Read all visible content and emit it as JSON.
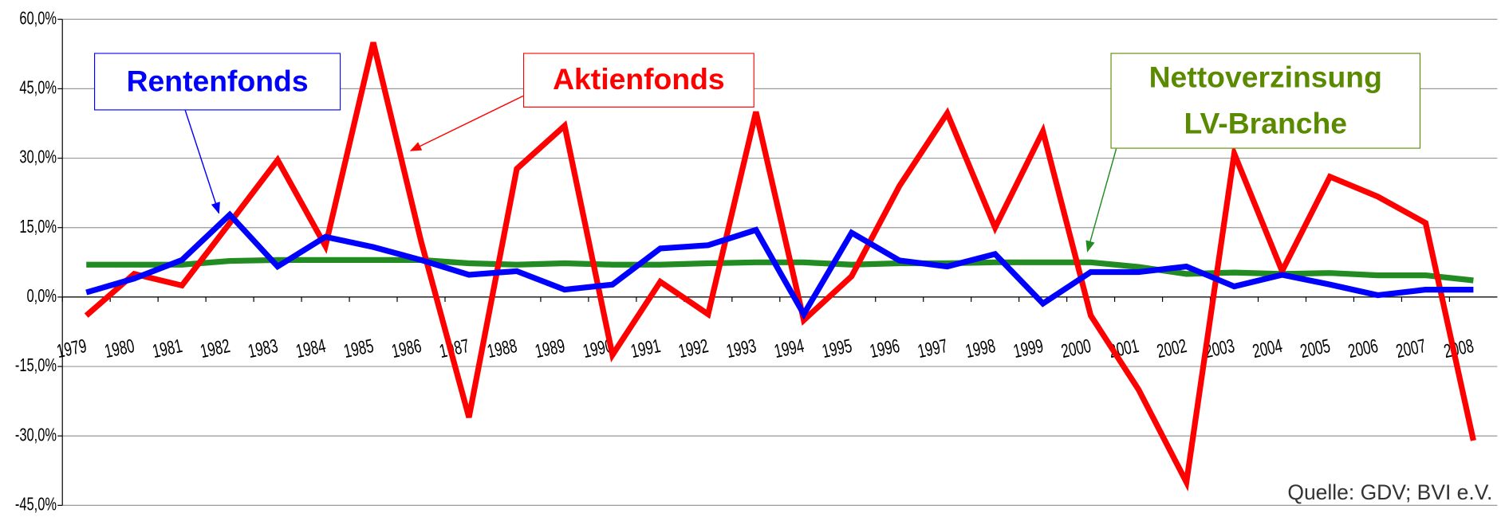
{
  "chart_data": {
    "type": "line",
    "categories": [
      "1979",
      "1980",
      "1981",
      "1982",
      "1983",
      "1984",
      "1985",
      "1986",
      "1987",
      "1988",
      "1989",
      "1990",
      "1991",
      "1992",
      "1993",
      "1994",
      "1995",
      "1996",
      "1997",
      "1998",
      "1999",
      "2000",
      "2001",
      "2002",
      "2003",
      "2004",
      "2005",
      "2006",
      "2007",
      "2008"
    ],
    "series": [
      {
        "name": "Nettoverzinsung LV-Branche",
        "color": "#228b22",
        "label_color": "#5a8a00",
        "values": [
          7,
          7,
          7,
          7.8,
          8,
          8,
          8,
          8,
          7.3,
          7,
          7.3,
          7,
          7,
          7.3,
          7.5,
          7.5,
          7,
          7.3,
          7.3,
          7.5,
          7.5,
          7.5,
          6.5,
          5,
          5.3,
          5,
          5.2,
          4.7,
          4.7,
          3.6
        ]
      },
      {
        "name": "Aktienfonds",
        "color": "#ff0000",
        "label_color": "#ff0000",
        "values": [
          -4,
          5,
          2.5,
          16,
          29.6,
          11,
          55,
          12,
          -26,
          27.7,
          37,
          -12.5,
          3.3,
          -3.7,
          40,
          -5,
          4.5,
          24,
          39.7,
          15,
          35.8,
          -4,
          -20,
          -40,
          31,
          5.6,
          26,
          21.7,
          16,
          -31
        ]
      },
      {
        "name": "Rentenfonds",
        "color": "#0000ff",
        "label_color": "#0000ff",
        "values": [
          1,
          4,
          8,
          17.8,
          6.6,
          13,
          10.8,
          8,
          4.8,
          5.6,
          1.6,
          2.7,
          10.5,
          11.2,
          14.5,
          -3.7,
          13.9,
          7.9,
          6.6,
          9.3,
          -1.4,
          5.4,
          5.4,
          6.6,
          2.3,
          4.8,
          2.7,
          0.4,
          1.6,
          1.6
        ]
      }
    ],
    "ylim": [
      -45,
      60
    ],
    "yticks": [
      {
        "value": -45,
        "label": "-45,0%"
      },
      {
        "value": -30,
        "label": "-30,0%"
      },
      {
        "value": -15,
        "label": "-15,0%"
      },
      {
        "value": 0,
        "label": "0,0%"
      },
      {
        "value": 15,
        "label": "15,0%"
      },
      {
        "value": 30,
        "label": "30,0%"
      },
      {
        "value": 45,
        "label": "45,0%"
      },
      {
        "value": 60,
        "label": "60,0%"
      }
    ],
    "grid": true,
    "source": "Quelle: GDV; BVI e.V."
  }
}
